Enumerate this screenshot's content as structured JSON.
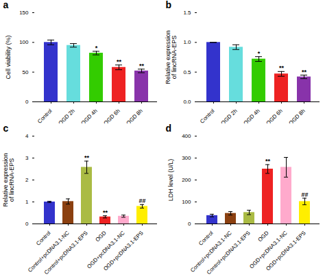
{
  "chart_data": [
    {
      "type": "bar",
      "title": "a",
      "categories": [
        "Control",
        "OGD 2h",
        "OGD 4h",
        "OGD 6h",
        "OGD 8h"
      ],
      "values": [
        100,
        95,
        82,
        58,
        52
      ],
      "errors": [
        4,
        3,
        3,
        4,
        3
      ],
      "colors": [
        "#3333cc",
        "#66dddd",
        "#33cc00",
        "#ee2222",
        "#8833aa"
      ],
      "ylabel": "Cell viability (%)",
      "ylim": [
        0,
        150
      ],
      "yticks": [
        0,
        50,
        100,
        150
      ],
      "significance": [
        null,
        null,
        "*",
        "**",
        "**"
      ]
    },
    {
      "type": "bar",
      "title": "b",
      "categories": [
        "Control",
        "OGD 2h",
        "OGD 4h",
        "OGD 6h",
        "OGD 8h"
      ],
      "values": [
        1.0,
        0.92,
        0.72,
        0.47,
        0.42
      ],
      "errors": [
        0.0,
        0.04,
        0.04,
        0.04,
        0.03
      ],
      "colors": [
        "#3333cc",
        "#66dddd",
        "#33cc00",
        "#ee2222",
        "#8833aa"
      ],
      "ylabel": "Relative expression\nof lincRNA-EPS",
      "ylim": [
        0,
        1.5
      ],
      "yticks": [
        {
          "value": 0.0,
          "label": "0.0"
        },
        0.5,
        {
          "value": 1.0,
          "label": "1.0"
        },
        1.5
      ],
      "significance": [
        null,
        null,
        "*",
        "**",
        "**"
      ]
    },
    {
      "type": "bar",
      "title": "c",
      "categories": [
        "Control",
        "Control+pcDNA3.1-NC",
        "Control+pcDNA3.1-EPS",
        "OGD",
        "OGD+pcDNA3.1-NC",
        "OGD+pcDNA3.1-EPS"
      ],
      "values": [
        1.0,
        1.02,
        2.58,
        0.32,
        0.35,
        0.8
      ],
      "errors": [
        0.03,
        0.12,
        0.28,
        0.05,
        0.05,
        0.08
      ],
      "colors": [
        "#3333cc",
        "#8b4010",
        "#aabb44",
        "#ee2222",
        "#ffaacc",
        "#ffee00"
      ],
      "ylabel": "Relative expression\nof lincRNA-EPS",
      "ylim": [
        0,
        4
      ],
      "yticks": [
        0,
        1,
        2,
        3,
        4
      ],
      "significance": [
        null,
        null,
        "**",
        "**",
        null,
        "##"
      ]
    },
    {
      "type": "bar",
      "title": "d",
      "categories": [
        "Control",
        "Control+pcDNA3.1-NC",
        "Control+pcDNA3.1-EPS",
        "OGD",
        "OGD+pcDNA3.1-NC",
        "OGD+pcDNA3.1-EPS"
      ],
      "values": [
        38,
        48,
        52,
        250,
        258,
        102
      ],
      "errors": [
        6,
        8,
        10,
        20,
        45,
        15
      ],
      "colors": [
        "#3333cc",
        "#8b4010",
        "#aabb44",
        "#ee2222",
        "#ffaacc",
        "#ffee00"
      ],
      "ylabel": "LDH level (U/L)",
      "ylim": [
        0,
        400
      ],
      "yticks": [
        0,
        100,
        200,
        300,
        400
      ],
      "significance": [
        null,
        null,
        null,
        "**",
        null,
        "##"
      ]
    }
  ]
}
